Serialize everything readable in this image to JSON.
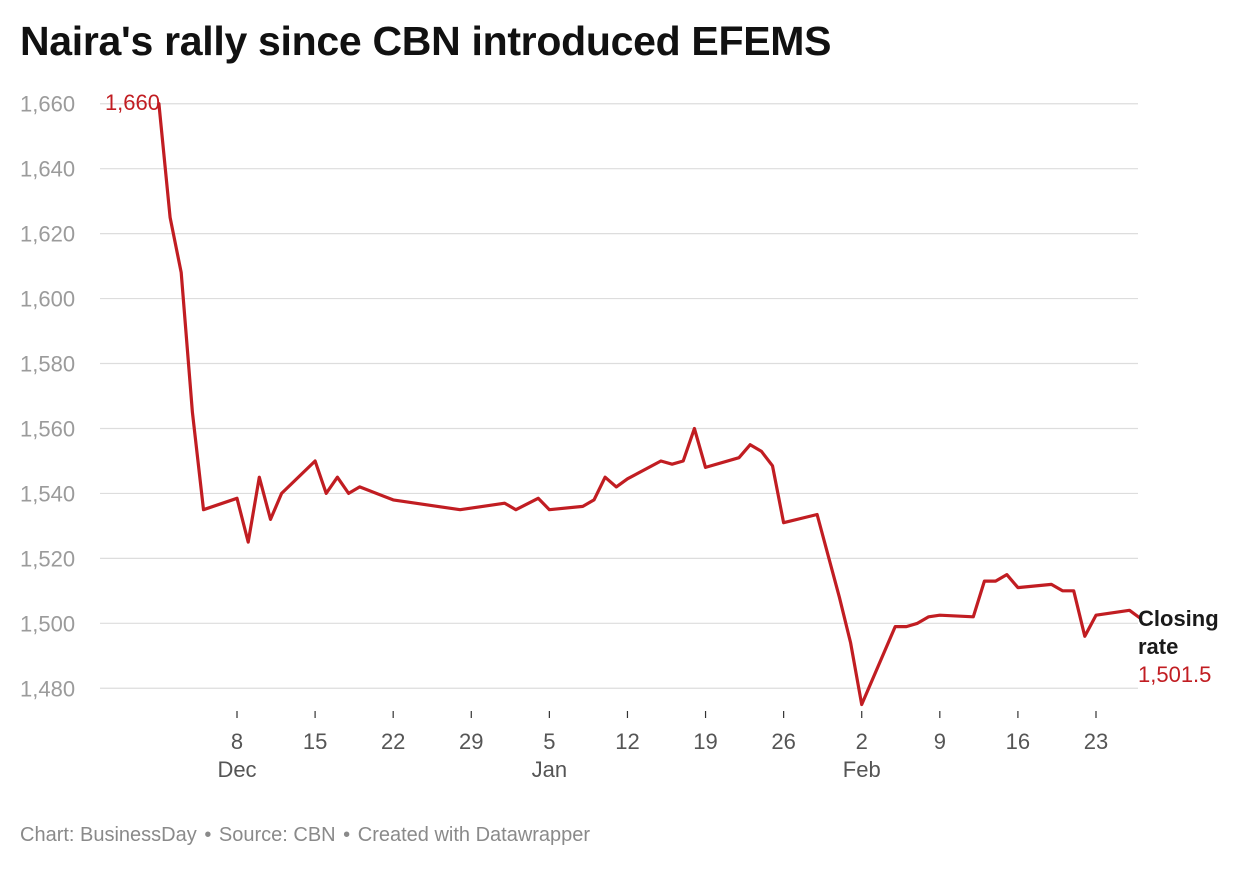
{
  "title": "Naira's rally since CBN introduced EFEMS",
  "footer": {
    "chart_credit": "Chart: BusinessDay",
    "source": "Source: CBN",
    "created_with": "Created with Datawrapper"
  },
  "colors": {
    "line": "#c11d22",
    "grid": "#dddddd",
    "axis_text": "#9b9b9b"
  },
  "chart_data": {
    "type": "line",
    "title": "Naira's rally since CBN introduced EFEMS",
    "ylim": [
      1473,
      1663
    ],
    "y_ticks": [
      1660,
      1640,
      1620,
      1600,
      1580,
      1560,
      1540,
      1520,
      1500,
      1480
    ],
    "y_tick_labels": [
      "1,660",
      "1,640",
      "1,620",
      "1,600",
      "1,580",
      "1,560",
      "1,540",
      "1,520",
      "1,500",
      "1,480"
    ],
    "x_range": [
      "2023-12-02",
      "2024-02-25"
    ],
    "x_ticks": [
      {
        "date": "2023-12-08",
        "label": "8",
        "month": "Dec"
      },
      {
        "date": "2023-12-15",
        "label": "15",
        "month": ""
      },
      {
        "date": "2023-12-22",
        "label": "22",
        "month": ""
      },
      {
        "date": "2023-12-29",
        "label": "29",
        "month": ""
      },
      {
        "date": "2024-01-05",
        "label": "5",
        "month": "Jan"
      },
      {
        "date": "2024-01-12",
        "label": "12",
        "month": ""
      },
      {
        "date": "2024-01-19",
        "label": "19",
        "month": ""
      },
      {
        "date": "2024-01-26",
        "label": "26",
        "month": ""
      },
      {
        "date": "2024-02-02",
        "label": "2",
        "month": "Feb"
      },
      {
        "date": "2024-02-09",
        "label": "9",
        "month": ""
      },
      {
        "date": "2024-02-16",
        "label": "16",
        "month": ""
      },
      {
        "date": "2024-02-23",
        "label": "23",
        "month": ""
      }
    ],
    "grid": true,
    "series": [
      {
        "points": [
          [
            "2023-12-01",
            1660
          ],
          [
            "2023-12-02",
            1625
          ],
          [
            "2023-12-03",
            1608
          ],
          [
            "2023-12-04",
            1565
          ],
          [
            "2023-12-05",
            1535
          ],
          [
            "2023-12-08",
            1538.5
          ],
          [
            "2023-12-09",
            1525
          ],
          [
            "2023-12-10",
            1545
          ],
          [
            "2023-12-11",
            1532
          ],
          [
            "2023-12-12",
            1540
          ],
          [
            "2023-12-15",
            1550
          ],
          [
            "2023-12-16",
            1540
          ],
          [
            "2023-12-17",
            1545
          ],
          [
            "2023-12-18",
            1540
          ],
          [
            "2023-12-19",
            1542
          ],
          [
            "2023-12-22",
            1538
          ],
          [
            "2023-12-24",
            1537
          ],
          [
            "2023-12-28",
            1535
          ],
          [
            "2024-01-01",
            1537
          ],
          [
            "2024-01-02",
            1535
          ],
          [
            "2024-01-04",
            1538.5
          ],
          [
            "2024-01-05",
            1535
          ],
          [
            "2024-01-08",
            1536
          ],
          [
            "2024-01-09",
            1538
          ],
          [
            "2024-01-10",
            1545
          ],
          [
            "2024-01-11",
            1542
          ],
          [
            "2024-01-12",
            1544.5
          ],
          [
            "2024-01-15",
            1550
          ],
          [
            "2024-01-16",
            1549
          ],
          [
            "2024-01-17",
            1550
          ],
          [
            "2024-01-18",
            1560
          ],
          [
            "2024-01-19",
            1548
          ],
          [
            "2024-01-22",
            1551
          ],
          [
            "2024-01-23",
            1555
          ],
          [
            "2024-01-24",
            1553
          ],
          [
            "2024-01-25",
            1548.5
          ],
          [
            "2024-01-26",
            1531
          ],
          [
            "2024-01-29",
            1533.5
          ],
          [
            "2024-01-31",
            1508
          ],
          [
            "2024-02-01",
            1494
          ],
          [
            "2024-02-02",
            1475
          ],
          [
            "2024-02-05",
            1499
          ],
          [
            "2024-02-06",
            1499
          ],
          [
            "2024-02-07",
            1500
          ],
          [
            "2024-02-08",
            1502
          ],
          [
            "2024-02-09",
            1502.5
          ],
          [
            "2024-02-12",
            1502
          ],
          [
            "2024-02-13",
            1513
          ],
          [
            "2024-02-14",
            1513
          ],
          [
            "2024-02-15",
            1515
          ],
          [
            "2024-02-16",
            1511
          ],
          [
            "2024-02-19",
            1512
          ],
          [
            "2024-02-20",
            1510
          ],
          [
            "2024-02-21",
            1510
          ],
          [
            "2024-02-22",
            1496
          ],
          [
            "2024-02-23",
            1502.5
          ],
          [
            "2024-02-26",
            1504
          ],
          [
            "2024-02-27",
            1501.5
          ]
        ]
      }
    ],
    "annotations": {
      "start_value": "1,660",
      "end_label": [
        "Closing",
        "rate"
      ],
      "end_value": "1,501.5"
    }
  }
}
